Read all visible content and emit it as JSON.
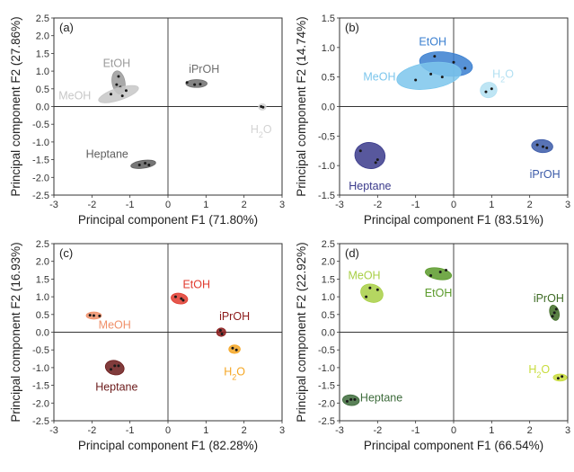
{
  "figure": {
    "panels": [
      {
        "id": "a",
        "label": "(a)",
        "xlabel": "Principal component F1 (71.80%)",
        "ylabel": "Principal component F2 (27.86%)"
      },
      {
        "id": "b",
        "label": "(b)",
        "xlabel": "Principal component F1 (83.51%)",
        "ylabel": "Principal component F2 (14.74%)"
      },
      {
        "id": "c",
        "label": "(c)",
        "xlabel": "Principal component F1 (82.28%)",
        "ylabel": "Principal component F2 (16.93%)"
      },
      {
        "id": "d",
        "label": "(d)",
        "xlabel": "Principal component F1 (66.54%)",
        "ylabel": "Principal component F2 (22.92%)"
      }
    ]
  },
  "chart_data": [
    {
      "type": "scatter",
      "panel": "(a)",
      "xlabel": "Principal component F1 (71.80%)",
      "ylabel": "Principal component F2 (27.86%)",
      "xlim": [
        -3,
        3
      ],
      "ylim": [
        -2.5,
        2.5
      ],
      "xticks": [
        "-3",
        "-2",
        "-1",
        "0",
        "1",
        "2",
        "3"
      ],
      "yticks": [
        "-2.5",
        "-2.0",
        "-1.5",
        "-1.0",
        "-0.5",
        "0.0",
        "0.5",
        "1.0",
        "1.5",
        "2.0",
        "2.5"
      ],
      "series": [
        {
          "name": "EtOH",
          "color": "#9a9a9a",
          "points": [
            [
              -1.3,
              0.85
            ],
            [
              -1.25,
              0.55
            ],
            [
              -1.35,
              0.62
            ]
          ],
          "ellipse": {
            "cx": -1.3,
            "cy": 0.68,
            "rx": 0.17,
            "ry": 0.33,
            "angle": 10
          },
          "label_xy": [
            -1.35,
            1.22
          ]
        },
        {
          "name": "MeOH",
          "color": "#c7c7c7",
          "points": [
            [
              -1.5,
              0.35
            ],
            [
              -1.1,
              0.45
            ],
            [
              -1.2,
              0.3
            ]
          ],
          "ellipse": {
            "cx": -1.3,
            "cy": 0.35,
            "rx": 0.55,
            "ry": 0.17,
            "angle": 18
          },
          "label_xy": [
            -2.45,
            0.3
          ]
        },
        {
          "name": "iPrOH",
          "color": "#6e6e6e",
          "points": [
            [
              0.5,
              0.68
            ],
            [
              0.7,
              0.62
            ],
            [
              0.85,
              0.63
            ]
          ],
          "ellipse": {
            "cx": 0.75,
            "cy": 0.65,
            "rx": 0.28,
            "ry": 0.11,
            "angle": 0
          },
          "label_xy": [
            0.95,
            1.05
          ]
        },
        {
          "name": "H2O",
          "color": "#d3d3d3",
          "points": [
            [
              2.45,
              0.0
            ],
            [
              2.5,
              -0.02
            ]
          ],
          "ellipse": {
            "cx": 2.48,
            "cy": -0.01,
            "rx": 0.1,
            "ry": 0.09,
            "angle": 0
          },
          "label_xy": [
            2.45,
            -0.65
          ]
        },
        {
          "name": "Heptane",
          "color": "#5e5e5e",
          "points": [
            [
              -0.75,
              -1.65
            ],
            [
              -0.6,
              -1.6
            ],
            [
              -0.5,
              -1.65
            ]
          ],
          "ellipse": {
            "cx": -0.65,
            "cy": -1.63,
            "rx": 0.33,
            "ry": 0.11,
            "angle": 8
          },
          "label_xy": [
            -1.6,
            -1.35
          ]
        }
      ]
    },
    {
      "type": "scatter",
      "panel": "(b)",
      "xlabel": "Principal component F1 (83.51%)",
      "ylabel": "Principal component F2 (14.74%)",
      "xlim": [
        -3,
        3
      ],
      "ylim": [
        -1.5,
        1.5
      ],
      "xticks": [
        "-3",
        "-2",
        "-1",
        "0",
        "1",
        "2",
        "3"
      ],
      "yticks": [
        "-1.5",
        "-1.0",
        "-0.5",
        "0.0",
        "0.5",
        "1.0",
        "1.5"
      ],
      "series": [
        {
          "name": "EtOH",
          "color": "#3a7fd0",
          "points": [
            [
              -0.5,
              0.85
            ],
            [
              0.0,
              0.75
            ],
            [
              0.3,
              0.65
            ]
          ],
          "ellipse": {
            "cx": -0.2,
            "cy": 0.72,
            "rx": 0.7,
            "ry": 0.2,
            "angle": -8
          },
          "label_xy": [
            -0.55,
            1.1
          ]
        },
        {
          "name": "MeOH",
          "color": "#7cc6ec",
          "points": [
            [
              -1.0,
              0.45
            ],
            [
              -0.6,
              0.55
            ],
            [
              -0.3,
              0.5
            ]
          ],
          "ellipse": {
            "cx": -0.65,
            "cy": 0.52,
            "rx": 0.85,
            "ry": 0.22,
            "angle": 8
          },
          "label_xy": [
            -1.95,
            0.5
          ]
        },
        {
          "name": "H2O",
          "color": "#b3e0f2",
          "points": [
            [
              0.85,
              0.25
            ],
            [
              1.0,
              0.3
            ]
          ],
          "ellipse": {
            "cx": 0.92,
            "cy": 0.28,
            "rx": 0.22,
            "ry": 0.13,
            "angle": 15
          },
          "label_xy": [
            1.3,
            0.55
          ]
        },
        {
          "name": "iPrOH",
          "color": "#3b5aa8",
          "points": [
            [
              2.2,
              -0.65
            ],
            [
              2.35,
              -0.68
            ],
            [
              2.45,
              -0.7
            ]
          ],
          "ellipse": {
            "cx": 2.33,
            "cy": -0.67,
            "rx": 0.28,
            "ry": 0.11,
            "angle": -5
          },
          "label_xy": [
            2.4,
            -1.15
          ]
        },
        {
          "name": "Heptane",
          "color": "#3b3b8c",
          "points": [
            [
              -2.45,
              -0.75
            ],
            [
              -2.05,
              -0.95
            ],
            [
              -2.0,
              -0.9
            ]
          ],
          "ellipse": {
            "cx": -2.2,
            "cy": -0.83,
            "rx": 0.4,
            "ry": 0.22,
            "angle": -10
          },
          "label_xy": [
            -2.2,
            -1.35
          ]
        }
      ]
    },
    {
      "type": "scatter",
      "panel": "(c)",
      "xlabel": "Principal component F1 (82.28%)",
      "ylabel": "Principal component F2 (16.93%)",
      "xlim": [
        -3,
        3
      ],
      "ylim": [
        -2.5,
        2.5
      ],
      "xticks": [
        "-3",
        "-2",
        "-1",
        "0",
        "1",
        "2",
        "3"
      ],
      "yticks": [
        "-2.5",
        "-2.0",
        "-1.5",
        "-1.0",
        "-0.5",
        "0.0",
        "0.5",
        "1.0",
        "1.5",
        "2.0",
        "2.5"
      ],
      "series": [
        {
          "name": "EtOH",
          "color": "#e03a2e",
          "points": [
            [
              0.2,
              1.0
            ],
            [
              0.35,
              0.95
            ],
            [
              0.4,
              0.9
            ]
          ],
          "ellipse": {
            "cx": 0.3,
            "cy": 0.95,
            "rx": 0.22,
            "ry": 0.15,
            "angle": -10
          },
          "label_xy": [
            0.75,
            1.35
          ]
        },
        {
          "name": "MeOH",
          "color": "#f0906a",
          "points": [
            [
              -2.05,
              0.48
            ],
            [
              -1.95,
              0.47
            ],
            [
              -1.8,
              0.46
            ]
          ],
          "ellipse": {
            "cx": -1.95,
            "cy": 0.47,
            "rx": 0.2,
            "ry": 0.1,
            "angle": 0
          },
          "label_xy": [
            -1.4,
            0.2
          ]
        },
        {
          "name": "iPrOH",
          "color": "#8b1a1a",
          "points": [
            [
              1.38,
              0.05
            ],
            [
              1.42,
              -0.05
            ]
          ],
          "ellipse": {
            "cx": 1.4,
            "cy": 0.0,
            "rx": 0.12,
            "ry": 0.12,
            "angle": 0
          },
          "label_xy": [
            1.75,
            0.45
          ]
        },
        {
          "name": "H2O",
          "color": "#f5a623",
          "points": [
            [
              1.7,
              -0.45
            ],
            [
              1.8,
              -0.5
            ]
          ],
          "ellipse": {
            "cx": 1.75,
            "cy": -0.48,
            "rx": 0.15,
            "ry": 0.12,
            "angle": 0
          },
          "label_xy": [
            1.75,
            -1.12
          ]
        },
        {
          "name": "Heptane",
          "color": "#6b1a1a",
          "points": [
            [
              -1.5,
              -1.05
            ],
            [
              -1.4,
              -0.95
            ],
            [
              -1.3,
              -0.95
            ]
          ],
          "ellipse": {
            "cx": -1.4,
            "cy": -1.0,
            "rx": 0.25,
            "ry": 0.2,
            "angle": -15
          },
          "label_xy": [
            -1.35,
            -1.55
          ]
        }
      ]
    },
    {
      "type": "scatter",
      "panel": "(d)",
      "xlabel": "Principal component F1 (66.54%)",
      "ylabel": "Principal component F2 (22.92%)",
      "xlim": [
        -3,
        3
      ],
      "ylim": [
        -2.5,
        2.5
      ],
      "xticks": [
        "-3",
        "-2",
        "-1",
        "0",
        "1",
        "2",
        "3"
      ],
      "yticks": [
        "-2.5",
        "-2.0",
        "-1.5",
        "-1.0",
        "-0.5",
        "0.0",
        "0.5",
        "1.0",
        "1.5",
        "2.0",
        "2.5"
      ],
      "series": [
        {
          "name": "MeOH",
          "color": "#a8cf45",
          "points": [
            [
              -2.3,
              1.0
            ],
            [
              -2.2,
              1.25
            ],
            [
              -2.0,
              1.2
            ]
          ],
          "ellipse": {
            "cx": -2.15,
            "cy": 1.1,
            "rx": 0.3,
            "ry": 0.25,
            "angle": -20
          },
          "label_xy": [
            -2.35,
            1.6
          ]
        },
        {
          "name": "EtOH",
          "color": "#5a9a2a",
          "points": [
            [
              -0.6,
              1.6
            ],
            [
              -0.35,
              1.7
            ],
            [
              -0.2,
              1.75
            ]
          ],
          "ellipse": {
            "cx": -0.4,
            "cy": 1.65,
            "rx": 0.35,
            "ry": 0.16,
            "angle": -10
          },
          "label_xy": [
            -0.4,
            1.1
          ]
        },
        {
          "name": "iPrOH",
          "color": "#3e6b25",
          "points": [
            [
              2.6,
              0.45
            ],
            [
              2.65,
              0.55
            ],
            [
              2.7,
              0.65
            ]
          ],
          "ellipse": {
            "cx": 2.65,
            "cy": 0.55,
            "rx": 0.12,
            "ry": 0.22,
            "angle": 15
          },
          "label_xy": [
            2.5,
            0.95
          ]
        },
        {
          "name": "H2O",
          "color": "#c8dc3c",
          "points": [
            [
              2.75,
              -1.3
            ],
            [
              2.85,
              -1.25
            ]
          ],
          "ellipse": {
            "cx": 2.8,
            "cy": -1.28,
            "rx": 0.18,
            "ry": 0.1,
            "angle": 0
          },
          "label_xy": [
            2.25,
            -1.05
          ]
        },
        {
          "name": "Heptane",
          "color": "#3d6b3b",
          "points": [
            [
              -2.8,
              -1.95
            ],
            [
              -2.7,
              -1.9
            ],
            [
              -2.6,
              -1.9
            ]
          ],
          "ellipse": {
            "cx": -2.7,
            "cy": -1.92,
            "rx": 0.22,
            "ry": 0.15,
            "angle": -5
          },
          "label_xy": [
            -1.9,
            -1.85
          ]
        }
      ]
    }
  ]
}
